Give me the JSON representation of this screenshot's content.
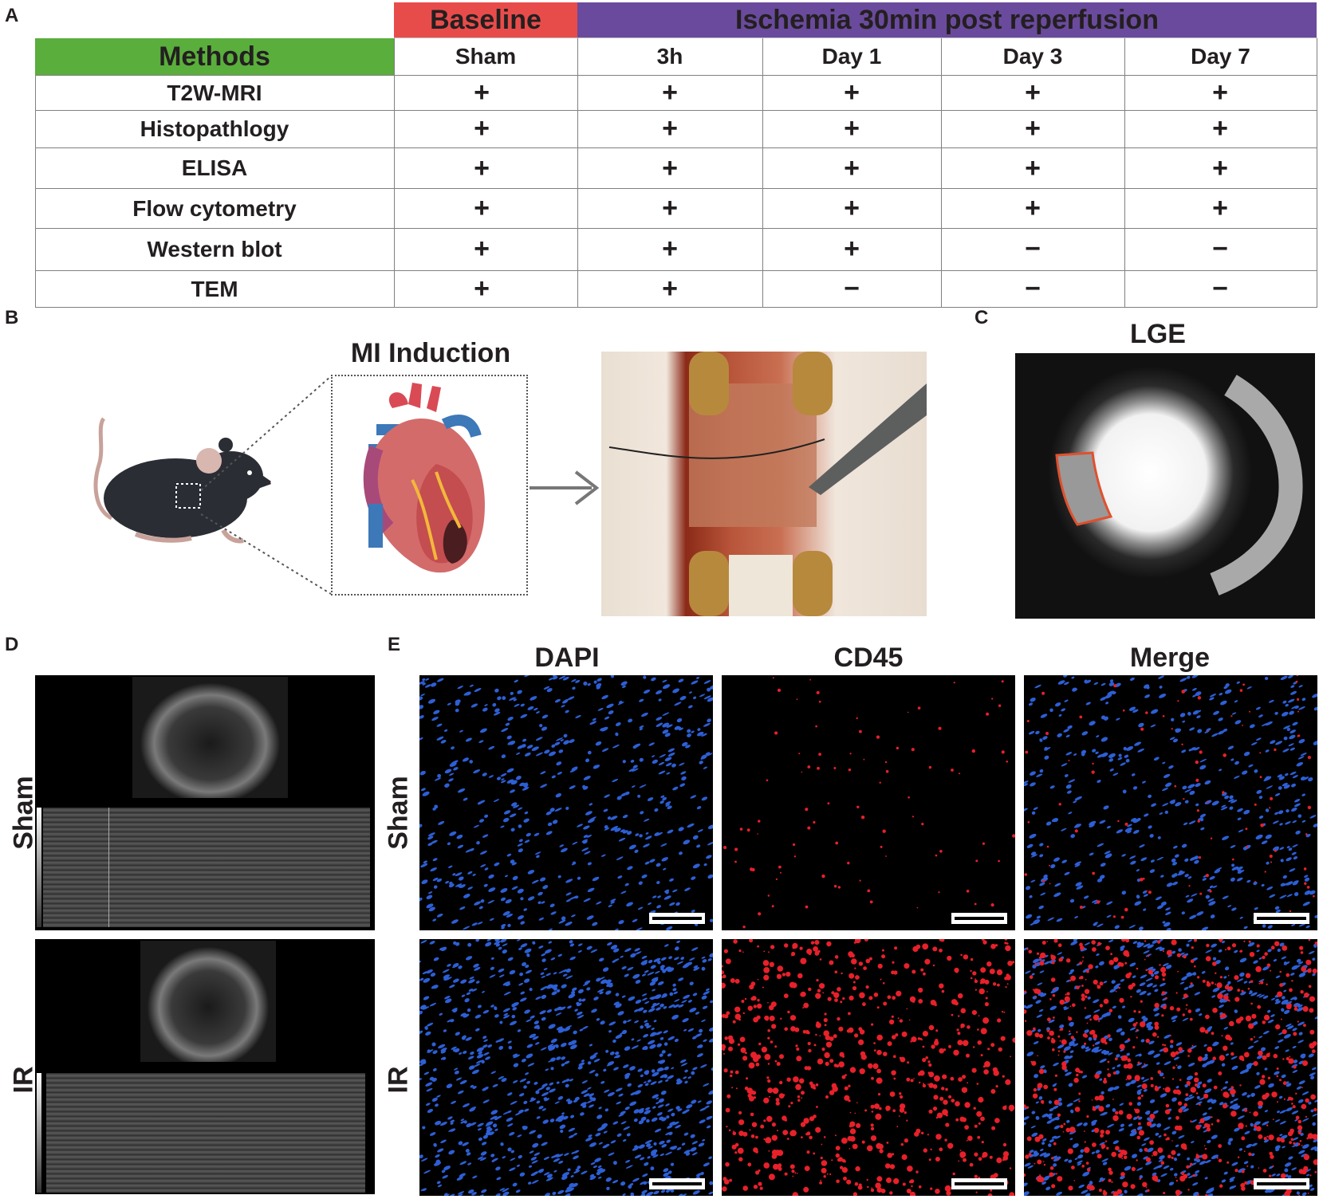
{
  "panels": {
    "A": "A",
    "B": "B",
    "C": "C",
    "D": "D",
    "E": "E"
  },
  "table": {
    "group_headers": {
      "baseline": "Baseline",
      "ischemia": "Ischemia 30min post reperfusion",
      "baseline_color": "#e84c4a",
      "ischemia_color": "#6a4a9c",
      "methods_color": "#5aae3c"
    },
    "methods_header": "Methods",
    "columns": [
      "Sham",
      "3h",
      "Day 1",
      "Day 3",
      "Day 7"
    ],
    "rows": [
      {
        "method": "T2W-MRI",
        "marks": [
          "+",
          "+",
          "+",
          "+",
          "+"
        ]
      },
      {
        "method": "Histopathlogy",
        "marks": [
          "+",
          "+",
          "+",
          "+",
          "+"
        ]
      },
      {
        "method": "ELISA",
        "marks": [
          "+",
          "+",
          "+",
          "+",
          "+"
        ]
      },
      {
        "method": "Flow cytometry",
        "marks": [
          "+",
          "+",
          "+",
          "+",
          "+"
        ]
      },
      {
        "method": "Western blot",
        "marks": [
          "+",
          "+",
          "+",
          "−",
          "−"
        ]
      },
      {
        "method": "TEM",
        "marks": [
          "+",
          "+",
          "−",
          "−",
          "−"
        ]
      }
    ]
  },
  "panel_b": {
    "title": "MI Induction"
  },
  "panel_c": {
    "title": "LGE"
  },
  "panel_d": {
    "rows": [
      "Sham",
      "IR"
    ]
  },
  "panel_e": {
    "columns": [
      "DAPI",
      "CD45",
      "Merge"
    ],
    "rows": [
      "Sham",
      "IR"
    ]
  }
}
